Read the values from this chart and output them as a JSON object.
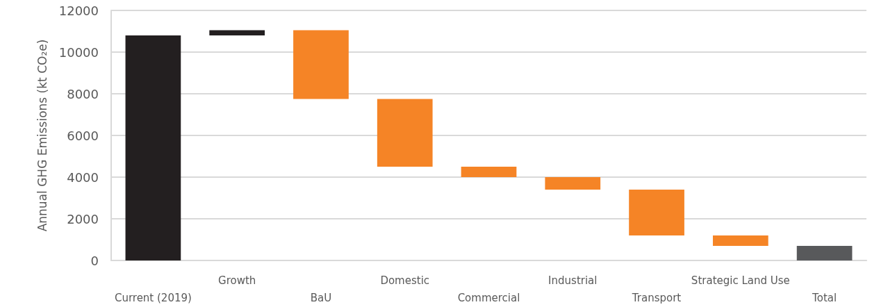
{
  "chart_data": {
    "type": "bar",
    "ylabel": "Annual GHG Emissions (kt CO₂e)",
    "categories": [
      "Current (2019)",
      "Growth",
      "BaU",
      "Domestic",
      "Commercial",
      "Industrial",
      "Transport",
      "Strategic Land Use",
      "Total"
    ],
    "base": [
      0,
      10800,
      11050,
      7750,
      4500,
      4000,
      3400,
      1200,
      0
    ],
    "values": [
      10800,
      250,
      -3300,
      -3250,
      -500,
      -600,
      -2200,
      -500,
      700
    ],
    "colors": [
      "#231f20",
      "#231f20",
      "#f58426",
      "#f58426",
      "#f58426",
      "#f58426",
      "#f58426",
      "#f58426",
      "#58595b"
    ],
    "ylim": [
      0,
      12000
    ],
    "yticks": [
      0,
      2000,
      4000,
      6000,
      8000,
      10000,
      12000
    ],
    "grid": "y"
  }
}
